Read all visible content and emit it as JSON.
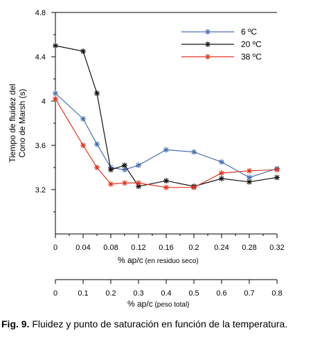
{
  "chart_data": {
    "type": "line",
    "ylabel_line1": "Tiempo de fluidez del",
    "ylabel_line2": "Cono de Marsh (s)",
    "xlabel_main": "% ap/c",
    "xlabel_note": "(en residuo seco)",
    "x2label_main": "% ap/c",
    "x2label_note": "(peso total)",
    "ylim": [
      2.8,
      4.8
    ],
    "yticks": [
      "4.8",
      "4.4",
      "4",
      "3.6",
      "3.2"
    ],
    "xlim": [
      0,
      0.32
    ],
    "xticks": [
      "0",
      "0.04",
      "0.08",
      "0.12",
      "0.16",
      "0.2",
      "0.24",
      "0.28",
      "0.32"
    ],
    "x2lim": [
      0,
      0.8
    ],
    "x2ticks": [
      "0",
      "0.1",
      "0.2",
      "0.3",
      "0.4",
      "0.5",
      "0.6",
      "0.7",
      "0.8"
    ],
    "legend_position": "top-right",
    "series": [
      {
        "name": "6 ºC",
        "color": "#4a6fb5",
        "x": [
          0,
          0.04,
          0.06,
          0.08,
          0.1,
          0.12,
          0.16,
          0.2,
          0.24,
          0.28,
          0.32
        ],
        "y": [
          4.07,
          3.84,
          3.61,
          3.4,
          3.38,
          3.42,
          3.56,
          3.54,
          3.45,
          3.31,
          3.39
        ]
      },
      {
        "name": "20 ºC",
        "color": "#111111",
        "x": [
          0,
          0.04,
          0.06,
          0.08,
          0.1,
          0.12,
          0.16,
          0.2,
          0.24,
          0.28,
          0.32
        ],
        "y": [
          4.5,
          4.45,
          4.07,
          3.38,
          3.42,
          3.23,
          3.28,
          3.23,
          3.3,
          3.27,
          3.31
        ]
      },
      {
        "name": "38 ºC",
        "color": "#e0321e",
        "x": [
          0,
          0.04,
          0.06,
          0.08,
          0.1,
          0.12,
          0.16,
          0.2,
          0.24,
          0.28,
          0.32
        ],
        "y": [
          4.02,
          3.6,
          3.4,
          3.25,
          3.26,
          3.26,
          3.22,
          3.22,
          3.35,
          3.37,
          3.38
        ]
      }
    ]
  },
  "caption": {
    "label": "Fig. 9.",
    "text": " Fluidez y punto de saturación en función de la temperatura."
  }
}
